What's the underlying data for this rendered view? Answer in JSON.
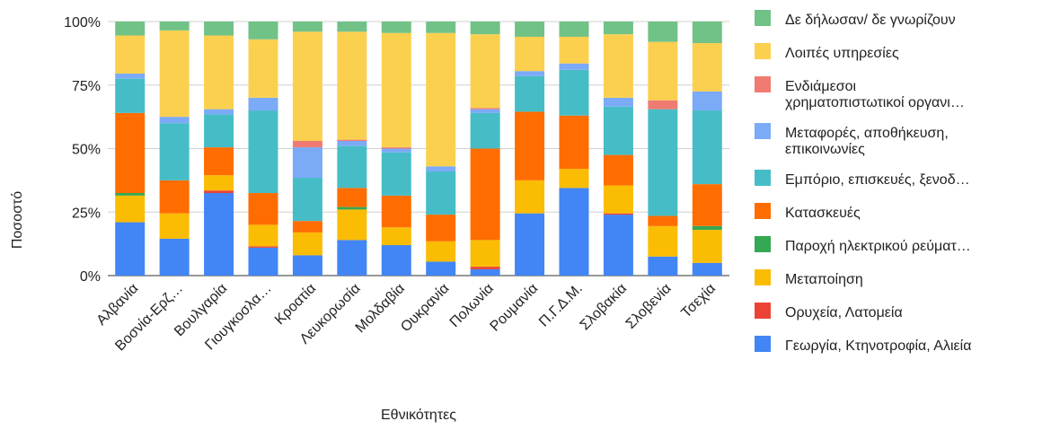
{
  "chart_data": {
    "type": "bar",
    "stacked": "percent",
    "title": "",
    "xlabel": "Εθνικότητες",
    "ylabel": "Ποσοστό",
    "ylim": [
      0,
      100
    ],
    "yticks": [
      "0%",
      "25%",
      "50%",
      "75%",
      "100%"
    ],
    "grid": true,
    "legend_position": "right",
    "categories": [
      "Αλβανία",
      "Βοσνία-Ερζ…",
      "Βουλγαρία",
      "Γιουγκοσλα…",
      "Κροατία",
      "Λευκορωσία",
      "Μολδαβία",
      "Ουκρανία",
      "Πολωνία",
      "Ρουμανία",
      "Π.Γ.Δ.Μ.",
      "Σλοβακία",
      "Σλοβενία",
      "Τσεχία"
    ],
    "series": [
      {
        "name": "Γεωργία, Κτηνοτροφία, Αλιεία",
        "color": "#4285f4",
        "values": [
          21,
          14.5,
          32.5,
          11,
          8,
          14,
          12,
          5.5,
          2.5,
          24.5,
          34.5,
          24,
          7.5,
          5
        ]
      },
      {
        "name": "Ορυχεία, Λατομεία",
        "color": "#ea4335",
        "values": [
          0,
          0,
          1,
          0.5,
          0,
          0,
          0,
          0,
          1,
          0,
          0,
          0.5,
          0,
          0
        ]
      },
      {
        "name": "Μεταποίηση",
        "color": "#fbbc04",
        "values": [
          10.5,
          10,
          6,
          8.5,
          9,
          12,
          7,
          8,
          10.5,
          13,
          7.5,
          11,
          12,
          13
        ]
      },
      {
        "name": "Παροχή ηλεκτρικού ρεύματ…",
        "color": "#34a853",
        "values": [
          1,
          0,
          0,
          0,
          0,
          1,
          0,
          0,
          0,
          0,
          0,
          0,
          0,
          1.5
        ]
      },
      {
        "name": "Κατασκευές",
        "color": "#ff6d01",
        "values": [
          31.5,
          13,
          11,
          12.5,
          4.5,
          7.5,
          12.5,
          10.5,
          36,
          27,
          21,
          12,
          4,
          16.5
        ]
      },
      {
        "name": "Εμπόριο, επισκευές, ξενοδ…",
        "color": "#46bdc6",
        "values": [
          13.5,
          22.5,
          13,
          32.5,
          17,
          16.5,
          17,
          17,
          14,
          14,
          18,
          19,
          42,
          29
        ]
      },
      {
        "name": "Μεταφορές, αποθήκευση, επικοινωνίες",
        "color": "#7baaf7",
        "values": [
          2,
          2.5,
          2,
          5,
          12,
          2,
          1.5,
          2,
          1.5,
          2,
          2.5,
          3.5,
          0,
          7.5
        ]
      },
      {
        "name": "Ενδιάμεσοι χρηματοπιστωτικοί οργανι…",
        "color": "#f07b72",
        "values": [
          0,
          0,
          0,
          0,
          2.5,
          0.5,
          0.5,
          0,
          0.5,
          0,
          0,
          0,
          3.5,
          0
        ]
      },
      {
        "name": "Λοιπές υπηρεσίες",
        "color": "#fcd04f",
        "values": [
          15,
          34,
          29,
          23,
          43,
          42.5,
          45,
          52.5,
          29,
          13.5,
          10.5,
          25,
          23,
          19
        ]
      },
      {
        "name": "Δε δήλωσαν/ δε γνωρίζουν",
        "color": "#71c287",
        "values": [
          5.5,
          3.5,
          5.5,
          7,
          4,
          4,
          4.5,
          4.5,
          5,
          6,
          6,
          5,
          8,
          8.5
        ]
      }
    ]
  }
}
